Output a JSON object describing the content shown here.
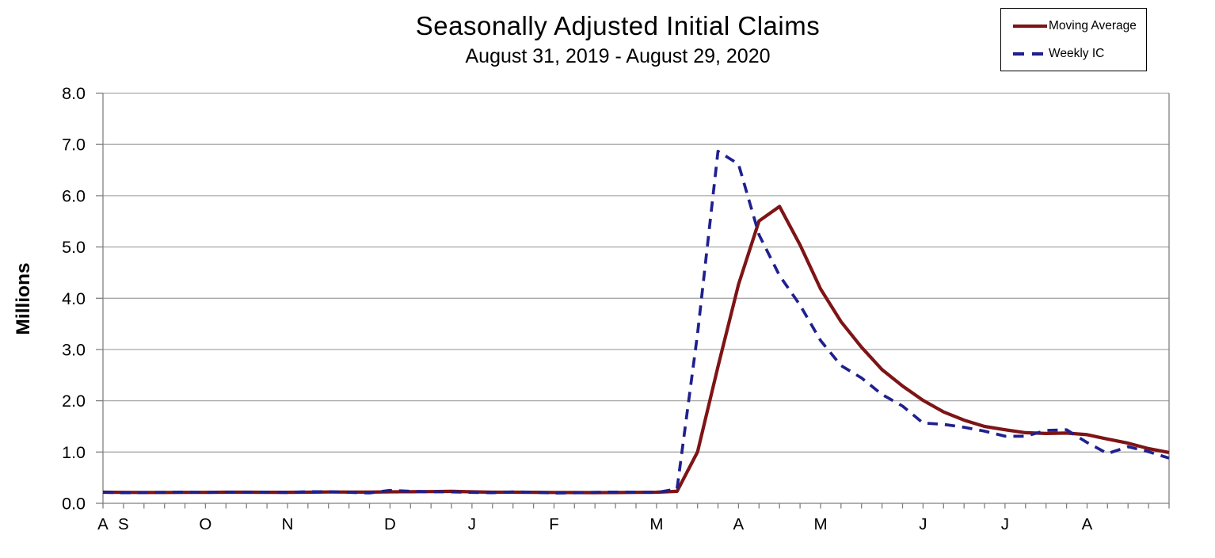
{
  "title": "Seasonally Adjusted Initial Claims",
  "subtitle": "August 31, 2019 - August 29, 2020",
  "y_axis": {
    "label": "Millions",
    "ticks": [
      "0.0",
      "1.0",
      "2.0",
      "3.0",
      "4.0",
      "5.0",
      "6.0",
      "7.0",
      "8.0"
    ]
  },
  "x_axis": {
    "month_labels": [
      {
        "label": "A",
        "week": 0
      },
      {
        "label": "S",
        "week": 1
      },
      {
        "label": "O",
        "week": 5
      },
      {
        "label": "N",
        "week": 9
      },
      {
        "label": "D",
        "week": 14
      },
      {
        "label": "J",
        "week": 18
      },
      {
        "label": "F",
        "week": 22
      },
      {
        "label": "M",
        "week": 27
      },
      {
        "label": "A",
        "week": 31
      },
      {
        "label": "M",
        "week": 35
      },
      {
        "label": "J",
        "week": 40
      },
      {
        "label": "J",
        "week": 44
      },
      {
        "label": "A",
        "week": 48
      }
    ]
  },
  "legend": {
    "items": [
      {
        "label": "Moving Average"
      },
      {
        "label": "Weekly IC"
      }
    ]
  },
  "colors": {
    "moving_average": "#7E1416",
    "weekly_ic": "#20208E",
    "grid": "#a8a8a8",
    "axis": "#808080"
  },
  "chart_data": {
    "type": "line",
    "title": "Seasonally Adjusted Initial Claims",
    "subtitle": "August 31, 2019 - August 29, 2020",
    "ylabel": "Millions",
    "ylim": [
      0,
      8
    ],
    "grid": true,
    "legend_position": "top-right",
    "x_unit": "week index 0-52, weekly from Aug 31 2019 to Aug 29 2020",
    "x_month_tick_labels": [
      "A",
      "S",
      "O",
      "N",
      "D",
      "J",
      "F",
      "M",
      "A",
      "M",
      "J",
      "J",
      "A"
    ],
    "series": [
      {
        "id": "moving-average",
        "name": "Moving Average",
        "color": "#7E1416",
        "style": "solid",
        "values": [
          0.216,
          0.213,
          0.212,
          0.212,
          0.213,
          0.214,
          0.216,
          0.216,
          0.215,
          0.215,
          0.217,
          0.221,
          0.22,
          0.218,
          0.224,
          0.226,
          0.229,
          0.234,
          0.224,
          0.217,
          0.216,
          0.215,
          0.212,
          0.211,
          0.209,
          0.21,
          0.214,
          0.216,
          0.233,
          1.004,
          2.667,
          4.268,
          5.507,
          5.79,
          5.04,
          4.181,
          3.543,
          3.044,
          2.608,
          2.288,
          2.008,
          1.782,
          1.621,
          1.499,
          1.435,
          1.377,
          1.362,
          1.369,
          1.338,
          1.254,
          1.174,
          1.067,
          0.991
        ]
      },
      {
        "id": "weekly-ic",
        "name": "Weekly IC",
        "color": "#20208E",
        "style": "dashed",
        "values": [
          0.217,
          0.206,
          0.21,
          0.215,
          0.22,
          0.212,
          0.218,
          0.213,
          0.218,
          0.211,
          0.227,
          0.228,
          0.213,
          0.203,
          0.252,
          0.235,
          0.224,
          0.223,
          0.212,
          0.207,
          0.223,
          0.217,
          0.201,
          0.204,
          0.215,
          0.22,
          0.217,
          0.211,
          0.282,
          3.307,
          6.867,
          6.615,
          5.237,
          4.442,
          3.867,
          3.176,
          2.687,
          2.446,
          2.123,
          1.897,
          1.566,
          1.54,
          1.482,
          1.408,
          1.31,
          1.308,
          1.422,
          1.435,
          1.186,
          0.971,
          1.104,
          1.006,
          0.881
        ]
      }
    ]
  }
}
